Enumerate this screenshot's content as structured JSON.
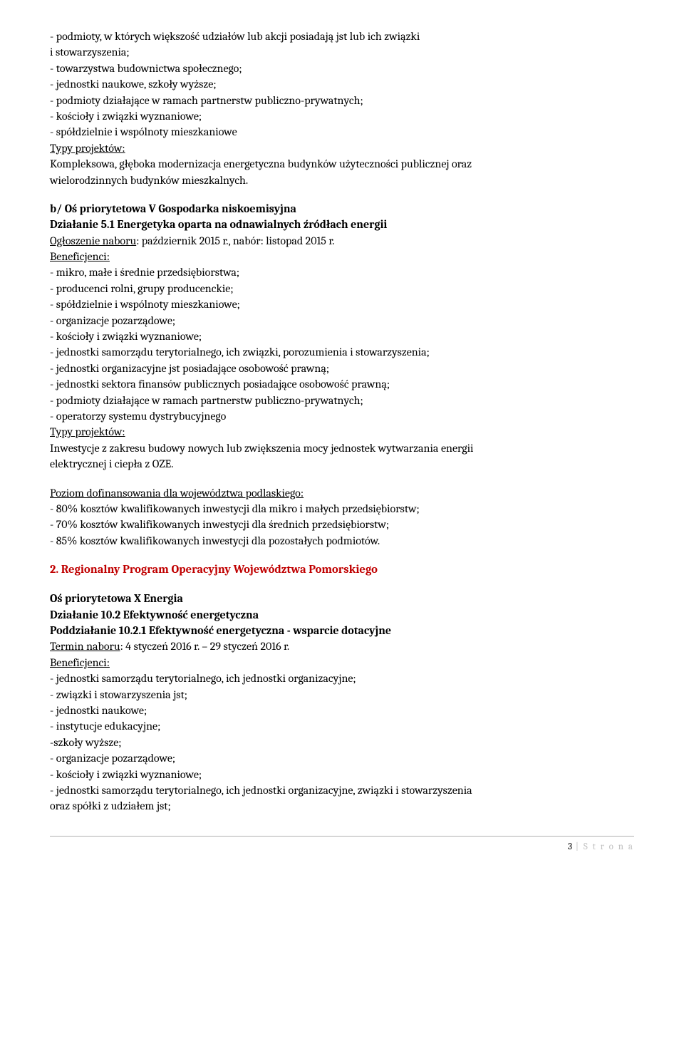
{
  "block1": {
    "lines": [
      "- podmioty, w których większość udziałów lub akcji posiadają jst lub ich związki",
      "i stowarzyszenia;",
      "- towarzystwa budownictwa społecznego;",
      "- jednostki naukowe, szkoły wyższe;",
      "- podmioty działające w ramach partnerstw publiczno-prywatnych;",
      "- kościoły i związki wyznaniowe;",
      "- spółdzielnie i wspólnoty mieszkaniowe"
    ],
    "typy_label": "Typy projektów:",
    "typy_text": [
      "Kompleksowa, głęboka modernizacja energetyczna budynków użyteczności publicznej oraz",
      "wielorodzinnych budynków mieszkalnych."
    ]
  },
  "block2": {
    "heading1": "b/ Oś priorytetowa V Gospodarka niskoemisyjna",
    "heading2": "Działanie 5.1 Energetyka oparta na odnawialnych źródłach energii",
    "nabor_label": "Ogłoszenie naboru",
    "nabor_text": ": październik 2015 r., nabór: listopad 2015 r.",
    "benef_label": "Beneficjenci:",
    "benef_lines": [
      "- mikro, małe i średnie przedsiębiorstwa;",
      "- producenci rolni, grupy producenckie;",
      "- spółdzielnie i wspólnoty mieszkaniowe;",
      "- organizacje pozarządowe;",
      "- kościoły i związki wyznaniowe;",
      "- jednostki samorządu terytorialnego, ich związki, porozumienia i stowarzyszenia;",
      "- jednostki organizacyjne jst posiadające osobowość prawną;",
      "- jednostki sektora finansów publicznych posiadające osobowość prawną;",
      "- podmioty działające w ramach partnerstw publiczno-prywatnych;",
      "- operatorzy systemu dystrybucyjnego"
    ],
    "typy_label": "Typy projektów:",
    "typy_text": [
      "Inwestycje z zakresu budowy nowych lub zwiększenia mocy jednostek wytwarzania energii",
      "elektrycznej i ciepła z OZE."
    ]
  },
  "block3": {
    "heading": "Poziom dofinansowania dla województwa podlaskiego:",
    "lines": [
      "- 80% kosztów kwalifikowanych inwestycji dla mikro i małych przedsiębiorstw;",
      "- 70% kosztów kwalifikowanych inwestycji dla średnich przedsiębiorstw;",
      "- 85% kosztów kwalifikowanych inwestycji dla pozostałych podmiotów."
    ]
  },
  "section2_title": "2. Regionalny Program Operacyjny Województwa Pomorskiego",
  "block4": {
    "heading1": "Oś priorytetowa X Energia",
    "heading2": "Działanie 10.2 Efektywność energetyczna",
    "heading3": "Poddziałanie 10.2.1 Efektywność energetyczna - wsparcie dotacyjne",
    "termin_label": "Termin naboru",
    "termin_text": ": 4 styczeń 2016 r. – 29 styczeń 2016 r.",
    "benef_label": "Beneficjenci:",
    "benef_lines": [
      "- jednostki samorządu terytorialnego, ich jednostki organizacyjne;",
      "- związki i stowarzyszenia jst;",
      "- jednostki naukowe;",
      "- instytucje edukacyjne;",
      "-szkoły wyższe;",
      "- organizacje pozarządowe;",
      "- kościoły i związki wyznaniowe;",
      "- jednostki samorządu terytorialnego, ich jednostki organizacyjne, związki i stowarzyszenia",
      "oraz spółki z udziałem jst;"
    ]
  },
  "footer": {
    "pagenum": "3",
    "text": " | S t r o n a"
  }
}
